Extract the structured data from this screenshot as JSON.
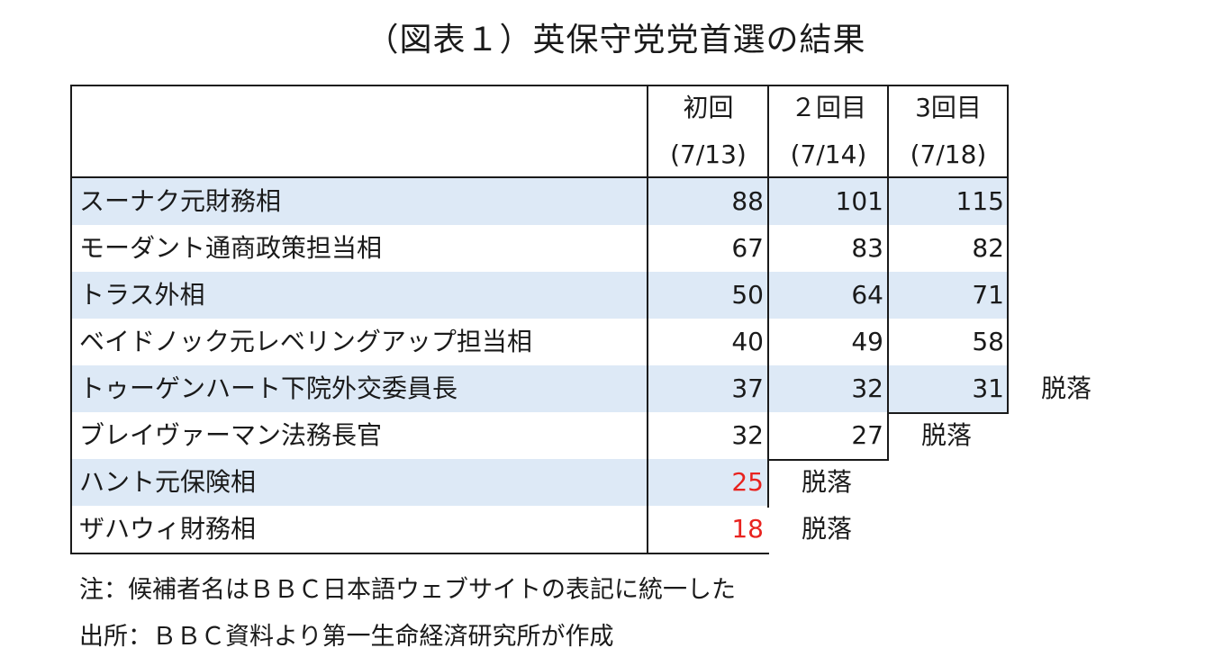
{
  "title": "（図表１）英保守党党首選の結果",
  "columns": [
    {
      "label": "初回",
      "date": "(7/13)"
    },
    {
      "label": "２回目",
      "date": "(7/14)"
    },
    {
      "label": "3回目",
      "date": "(7/18)"
    }
  ],
  "rows": [
    {
      "name": "スーナク元財務相",
      "round1": "88",
      "round2": "101",
      "round3": "115"
    },
    {
      "name": "モーダント通商政策担当相",
      "round1": "67",
      "round2": "83",
      "round3": "82"
    },
    {
      "name": "トラス外相",
      "round1": "50",
      "round2": "64",
      "round3": "71"
    },
    {
      "name": "ベイドノック元レベリングアップ担当相",
      "round1": "40",
      "round2": "49",
      "round3": "58"
    },
    {
      "name": "トゥーゲンハート下院外交委員長",
      "round1": "37",
      "round2": "32",
      "round3": "31",
      "status": "脱落"
    },
    {
      "name": "ブレイヴァーマン法務長官",
      "round1": "32",
      "round2": "27",
      "status": "脱落"
    },
    {
      "name": "ハント元保険相",
      "round1": "25",
      "status": "脱落"
    },
    {
      "name": "ザハウィ財務相",
      "round1": "18",
      "status": "脱落"
    }
  ],
  "colors": {
    "band": "#dde9f6",
    "eliminated_value": "#e8231f",
    "border": "#1a1a1a"
  },
  "notes": {
    "note": "注：候補者名はＢＢＣ日本語ウェブサイトの表記に統一した",
    "source": "出所：ＢＢＣ資料より第一生命経済研究所が作成"
  }
}
